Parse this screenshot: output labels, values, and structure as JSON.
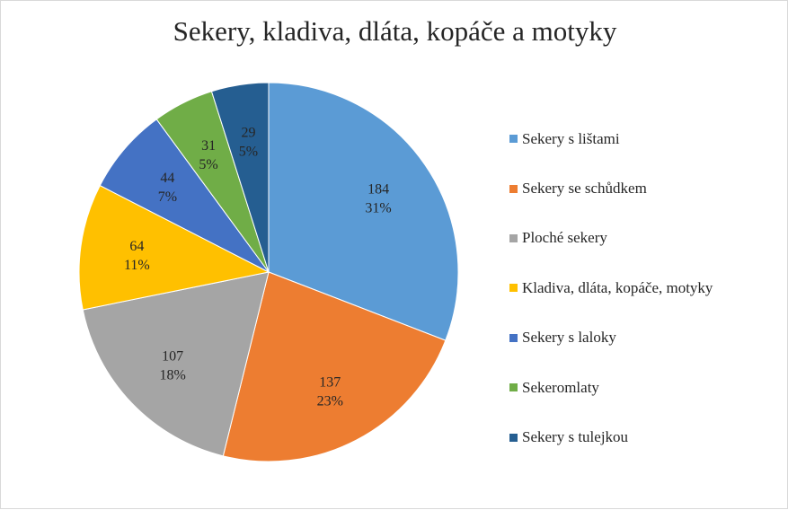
{
  "chart_data": {
    "type": "pie",
    "title": "Sekery, kladiva, dláta, kopáče a motyky",
    "categories": [
      "Sekery s lištami",
      "Sekery se schůdkem",
      "Ploché sekery",
      "Kladiva, dláta, kopáče, motyky",
      "Sekery s laloky",
      "Sekeromlaty",
      "Sekery s tulejkou"
    ],
    "values": [
      184,
      137,
      107,
      64,
      44,
      31,
      29
    ],
    "percent_labels": [
      "31%",
      "23%",
      "18%",
      "11%",
      "7%",
      "5%",
      "5%"
    ],
    "colors": [
      "#5B9BD5",
      "#ED7D31",
      "#A5A5A5",
      "#FFC000",
      "#4472C4",
      "#70AD47",
      "#255E91"
    ],
    "legend_position": "right",
    "start_angle_deg": 0,
    "direction": "clockwise"
  }
}
